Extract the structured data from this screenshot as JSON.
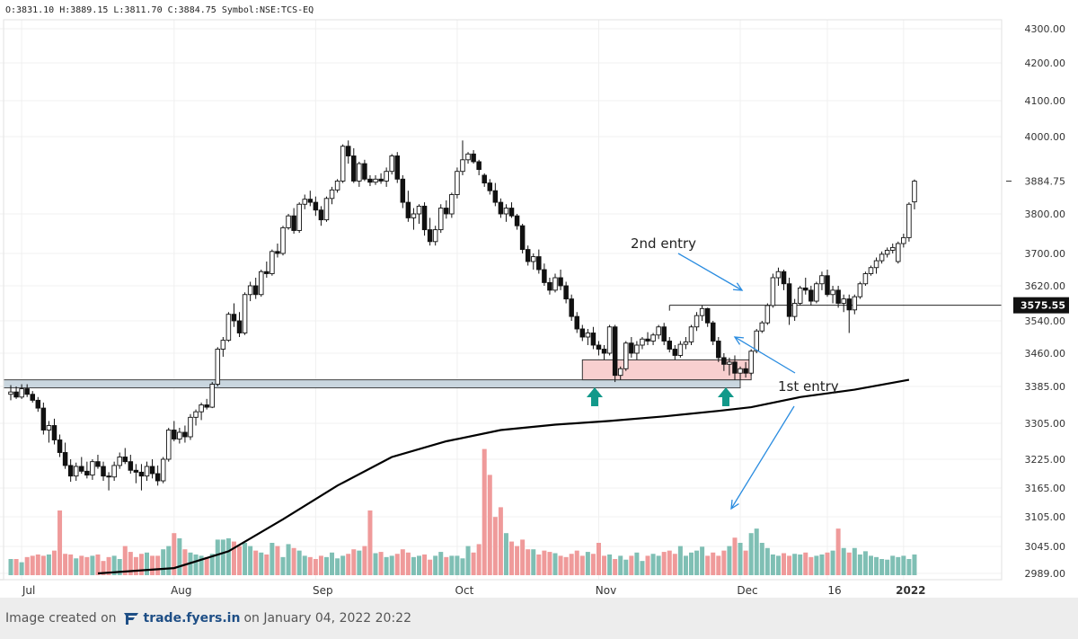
{
  "header": {
    "ohlc": "O:3831.10 H:3889.15 L:3811.70 C:3884.75 Symbol:NSE:TCS-EQ"
  },
  "footer": {
    "prefix": "Image created on",
    "brand": "trade.fyers.in",
    "suffix": "on January 04, 2022 20:22"
  },
  "colors": {
    "up": "#ffffff",
    "down": "#111111",
    "vol_up": "#7fbfb4",
    "vol_down": "#ef9a9a",
    "ma": "#000000",
    "arrow_blue": "#2a8ce0",
    "marker_green": "#12998a",
    "zone_pink": "#f8cfcf",
    "zone_gray": "#c9d6df"
  },
  "chart_data": {
    "type": "candlestick",
    "symbol": "NSE:TCS-EQ",
    "last_price": "3884.75",
    "level_price": "3575.55",
    "y_ticks": [
      "4300.00",
      "4200.00",
      "4100.00",
      "4000.00",
      "3800.00",
      "3700.00",
      "3620.00",
      "3540.00",
      "3460.00",
      "3385.00",
      "3305.00",
      "3225.00",
      "3165.00",
      "3105.00",
      "3045.00",
      "2989.00"
    ],
    "y_tick_values": [
      4300,
      4200,
      4100,
      4000,
      3800,
      3700,
      3620,
      3540,
      3460,
      3385,
      3305,
      3225,
      3165,
      3105,
      3045,
      2989
    ],
    "x_labels": [
      "Jul",
      "Aug",
      "Sep",
      "Oct",
      "Nov",
      "Dec",
      "16",
      "2022"
    ],
    "x_label_index": [
      2,
      30,
      56,
      82,
      108,
      134,
      150,
      164
    ],
    "annotations": {
      "second_entry": "2nd entry",
      "first_entry": "1st entry"
    },
    "ohlc": [
      [
        3368,
        3388,
        3355,
        3373
      ],
      [
        3373,
        3385,
        3358,
        3362
      ],
      [
        3362,
        3390,
        3358,
        3380
      ],
      [
        3380,
        3390,
        3362,
        3368
      ],
      [
        3368,
        3375,
        3350,
        3355
      ],
      [
        3355,
        3362,
        3330,
        3338
      ],
      [
        3338,
        3350,
        3280,
        3290
      ],
      [
        3290,
        3310,
        3262,
        3300
      ],
      [
        3300,
        3315,
        3258,
        3268
      ],
      [
        3268,
        3280,
        3230,
        3240
      ],
      [
        3240,
        3262,
        3205,
        3212
      ],
      [
        3212,
        3225,
        3178,
        3190
      ],
      [
        3190,
        3218,
        3180,
        3210
      ],
      [
        3210,
        3230,
        3195,
        3200
      ],
      [
        3200,
        3220,
        3185,
        3192
      ],
      [
        3192,
        3225,
        3182,
        3220
      ],
      [
        3220,
        3235,
        3205,
        3210
      ],
      [
        3210,
        3220,
        3180,
        3190
      ],
      [
        3190,
        3198,
        3160,
        3188
      ],
      [
        3188,
        3220,
        3180,
        3212
      ],
      [
        3212,
        3240,
        3205,
        3230
      ],
      [
        3230,
        3250,
        3215,
        3220
      ],
      [
        3220,
        3235,
        3195,
        3202
      ],
      [
        3202,
        3215,
        3175,
        3198
      ],
      [
        3198,
        3215,
        3160,
        3190
      ],
      [
        3190,
        3220,
        3180,
        3210
      ],
      [
        3210,
        3225,
        3185,
        3195
      ],
      [
        3195,
        3212,
        3170,
        3180
      ],
      [
        3180,
        3230,
        3175,
        3225
      ],
      [
        3225,
        3295,
        3220,
        3290
      ],
      [
        3290,
        3310,
        3265,
        3270
      ],
      [
        3270,
        3295,
        3260,
        3285
      ],
      [
        3285,
        3300,
        3262,
        3275
      ],
      [
        3275,
        3325,
        3268,
        3318
      ],
      [
        3318,
        3335,
        3300,
        3330
      ],
      [
        3330,
        3350,
        3312,
        3345
      ],
      [
        3345,
        3358,
        3335,
        3340
      ],
      [
        3340,
        3395,
        3338,
        3390
      ],
      [
        3390,
        3475,
        3385,
        3470
      ],
      [
        3470,
        3500,
        3452,
        3492
      ],
      [
        3492,
        3560,
        3488,
        3555
      ],
      [
        3555,
        3580,
        3525,
        3540
      ],
      [
        3540,
        3560,
        3500,
        3510
      ],
      [
        3510,
        3605,
        3505,
        3600
      ],
      [
        3600,
        3630,
        3585,
        3620
      ],
      [
        3620,
        3640,
        3590,
        3600
      ],
      [
        3600,
        3660,
        3595,
        3655
      ],
      [
        3655,
        3680,
        3640,
        3650
      ],
      [
        3650,
        3710,
        3645,
        3705
      ],
      [
        3705,
        3725,
        3690,
        3700
      ],
      [
        3700,
        3770,
        3695,
        3765
      ],
      [
        3765,
        3800,
        3760,
        3795
      ],
      [
        3795,
        3815,
        3750,
        3758
      ],
      [
        3758,
        3830,
        3752,
        3825
      ],
      [
        3825,
        3850,
        3812,
        3838
      ],
      [
        3838,
        3860,
        3820,
        3830
      ],
      [
        3830,
        3845,
        3795,
        3810
      ],
      [
        3810,
        3820,
        3770,
        3785
      ],
      [
        3785,
        3845,
        3780,
        3840
      ],
      [
        3840,
        3870,
        3825,
        3862
      ],
      [
        3862,
        3890,
        3855,
        3885
      ],
      [
        3885,
        3980,
        3880,
        3975
      ],
      [
        3975,
        3990,
        3930,
        3950
      ],
      [
        3950,
        3970,
        3880,
        3885
      ],
      [
        3885,
        3935,
        3870,
        3930
      ],
      [
        3930,
        3940,
        3885,
        3890
      ],
      [
        3890,
        3900,
        3872,
        3882
      ],
      [
        3882,
        3900,
        3875,
        3890
      ],
      [
        3890,
        3905,
        3878,
        3885
      ],
      [
        3885,
        3920,
        3870,
        3910
      ],
      [
        3910,
        3955,
        3902,
        3950
      ],
      [
        3950,
        3960,
        3880,
        3890
      ],
      [
        3890,
        3900,
        3815,
        3830
      ],
      [
        3830,
        3860,
        3780,
        3790
      ],
      [
        3790,
        3815,
        3760,
        3800
      ],
      [
        3800,
        3825,
        3775,
        3820
      ],
      [
        3820,
        3830,
        3745,
        3760
      ],
      [
        3760,
        3790,
        3720,
        3730
      ],
      [
        3730,
        3770,
        3720,
        3760
      ],
      [
        3760,
        3825,
        3752,
        3815
      ],
      [
        3815,
        3835,
        3788,
        3800
      ],
      [
        3800,
        3855,
        3790,
        3850
      ],
      [
        3850,
        3920,
        3840,
        3910
      ],
      [
        3910,
        3990,
        3900,
        3940
      ],
      [
        3940,
        3960,
        3930,
        3955
      ],
      [
        3955,
        3965,
        3930,
        3935
      ],
      [
        3935,
        3940,
        3900,
        3915
      ],
      [
        3900,
        3905,
        3870,
        3880
      ],
      [
        3880,
        3890,
        3850,
        3860
      ],
      [
        3860,
        3880,
        3820,
        3830
      ],
      [
        3830,
        3840,
        3790,
        3800
      ],
      [
        3800,
        3825,
        3780,
        3815
      ],
      [
        3815,
        3830,
        3790,
        3795
      ],
      [
        3795,
        3800,
        3760,
        3770
      ],
      [
        3770,
        3775,
        3700,
        3710
      ],
      [
        3710,
        3720,
        3670,
        3680
      ],
      [
        3680,
        3700,
        3660,
        3692
      ],
      [
        3692,
        3710,
        3650,
        3660
      ],
      [
        3660,
        3675,
        3620,
        3628
      ],
      [
        3628,
        3640,
        3600,
        3610
      ],
      [
        3610,
        3650,
        3605,
        3640
      ],
      [
        3640,
        3660,
        3610,
        3620
      ],
      [
        3620,
        3630,
        3580,
        3590
      ],
      [
        3590,
        3600,
        3540,
        3550
      ],
      [
        3550,
        3560,
        3510,
        3520
      ],
      [
        3520,
        3530,
        3490,
        3500
      ],
      [
        3500,
        3520,
        3480,
        3510
      ],
      [
        3510,
        3525,
        3470,
        3480
      ],
      [
        3480,
        3490,
        3455,
        3470
      ],
      [
        3470,
        3480,
        3445,
        3460
      ],
      [
        3460,
        3530,
        3455,
        3525
      ],
      [
        3525,
        3530,
        3395,
        3410
      ],
      [
        3410,
        3430,
        3400,
        3425
      ],
      [
        3425,
        3490,
        3420,
        3485
      ],
      [
        3485,
        3500,
        3450,
        3460
      ],
      [
        3460,
        3490,
        3445,
        3480
      ],
      [
        3480,
        3500,
        3470,
        3495
      ],
      [
        3495,
        3512,
        3480,
        3490
      ],
      [
        3490,
        3510,
        3480,
        3505
      ],
      [
        3505,
        3530,
        3495,
        3525
      ],
      [
        3525,
        3535,
        3480,
        3490
      ],
      [
        3490,
        3500,
        3462,
        3470
      ],
      [
        3470,
        3480,
        3445,
        3455
      ],
      [
        3455,
        3490,
        3450,
        3482
      ],
      [
        3482,
        3500,
        3470,
        3488
      ],
      [
        3488,
        3530,
        3480,
        3525
      ],
      [
        3525,
        3560,
        3515,
        3552
      ],
      [
        3552,
        3575,
        3540,
        3568
      ],
      [
        3568,
        3570,
        3525,
        3535
      ],
      [
        3535,
        3540,
        3480,
        3490
      ],
      [
        3490,
        3500,
        3440,
        3450
      ],
      [
        3450,
        3460,
        3420,
        3435
      ],
      [
        3435,
        3450,
        3410,
        3440
      ],
      [
        3440,
        3455,
        3400,
        3415
      ],
      [
        3415,
        3430,
        3400,
        3425
      ],
      [
        3425,
        3440,
        3405,
        3415
      ],
      [
        3415,
        3470,
        3410,
        3465
      ],
      [
        3465,
        3520,
        3460,
        3515
      ],
      [
        3515,
        3540,
        3510,
        3535
      ],
      [
        3535,
        3580,
        3530,
        3575
      ],
      [
        3575,
        3650,
        3570,
        3640
      ],
      [
        3640,
        3665,
        3620,
        3655
      ],
      [
        3655,
        3660,
        3610,
        3625
      ],
      [
        3625,
        3640,
        3530,
        3550
      ],
      [
        3550,
        3590,
        3540,
        3580
      ],
      [
        3580,
        3620,
        3575,
        3615
      ],
      [
        3615,
        3640,
        3600,
        3610
      ],
      [
        3610,
        3620,
        3575,
        3585
      ],
      [
        3585,
        3630,
        3580,
        3625
      ],
      [
        3625,
        3655,
        3610,
        3645
      ],
      [
        3645,
        3660,
        3595,
        3600
      ],
      [
        3600,
        3620,
        3580,
        3610
      ],
      [
        3610,
        3620,
        3570,
        3580
      ],
      [
        3580,
        3600,
        3560,
        3590
      ],
      [
        3590,
        3600,
        3510,
        3565
      ],
      [
        3565,
        3600,
        3555,
        3595
      ],
      [
        3595,
        3630,
        3590,
        3625
      ],
      [
        3625,
        3655,
        3620,
        3650
      ],
      [
        3650,
        3670,
        3645,
        3665
      ],
      [
        3665,
        3690,
        3650,
        3682
      ],
      [
        3682,
        3705,
        3675,
        3698
      ],
      [
        3698,
        3715,
        3690,
        3708
      ],
      [
        3708,
        3725,
        3700,
        3715
      ],
      [
        3680,
        3730,
        3675,
        3725
      ],
      [
        3725,
        3750,
        3715,
        3740
      ],
      [
        3740,
        3830,
        3730,
        3825
      ],
      [
        3831.1,
        3889.15,
        3811.7,
        3884.75
      ]
    ],
    "volume": [
      0.25,
      0.25,
      0.2,
      0.28,
      0.3,
      0.32,
      0.3,
      0.32,
      0.38,
      1.0,
      0.33,
      0.32,
      0.26,
      0.3,
      0.28,
      0.3,
      0.32,
      0.22,
      0.28,
      0.3,
      0.25,
      0.45,
      0.36,
      0.28,
      0.33,
      0.35,
      0.3,
      0.3,
      0.4,
      0.45,
      0.65,
      0.57,
      0.4,
      0.35,
      0.32,
      0.3,
      0.28,
      0.33,
      0.55,
      0.55,
      0.57,
      0.52,
      0.45,
      0.5,
      0.45,
      0.38,
      0.35,
      0.32,
      0.5,
      0.45,
      0.28,
      0.48,
      0.42,
      0.38,
      0.3,
      0.28,
      0.25,
      0.3,
      0.28,
      0.35,
      0.26,
      0.3,
      0.33,
      0.4,
      0.38,
      0.45,
      1.0,
      0.34,
      0.36,
      0.28,
      0.3,
      0.33,
      0.4,
      0.35,
      0.28,
      0.3,
      0.32,
      0.24,
      0.3,
      0.36,
      0.28,
      0.3,
      0.3,
      0.26,
      0.45,
      0.35,
      0.48,
      1.95,
      1.55,
      0.9,
      1.05,
      0.65,
      0.52,
      0.45,
      0.55,
      0.4,
      0.4,
      0.32,
      0.38,
      0.36,
      0.34,
      0.3,
      0.28,
      0.33,
      0.38,
      0.3,
      0.36,
      0.33,
      0.5,
      0.3,
      0.32,
      0.25,
      0.3,
      0.24,
      0.3,
      0.35,
      0.22,
      0.3,
      0.33,
      0.3,
      0.36,
      0.38,
      0.33,
      0.45,
      0.3,
      0.35,
      0.38,
      0.44,
      0.3,
      0.35,
      0.3,
      0.38,
      0.45,
      0.58,
      0.5,
      0.38,
      0.65,
      0.72,
      0.5,
      0.42,
      0.32,
      0.3,
      0.34,
      0.3,
      0.33,
      0.32,
      0.35,
      0.28,
      0.3,
      0.32,
      0.35,
      0.38,
      0.72,
      0.42,
      0.35,
      0.42,
      0.32,
      0.37,
      0.3,
      0.28,
      0.25,
      0.24,
      0.3,
      0.28,
      0.3,
      0.25,
      0.32,
      0.35
    ]
  }
}
